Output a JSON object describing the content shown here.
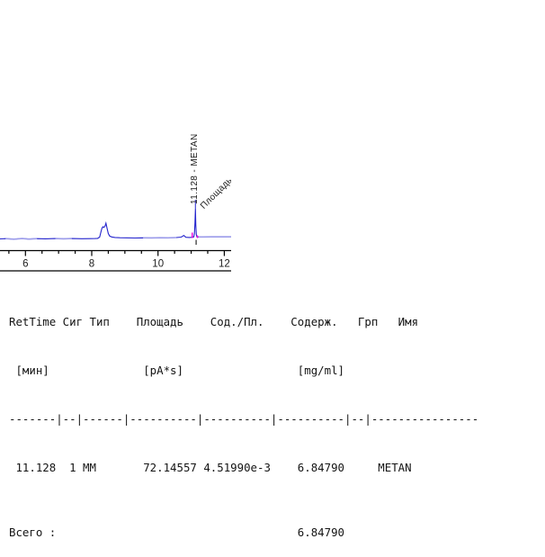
{
  "chart_data": {
    "type": "line",
    "title": "",
    "xlabel": "",
    "ylabel": "",
    "xlim": [
      5.23,
      12.27
    ],
    "x_major_ticks": [
      6,
      8,
      10,
      12
    ],
    "x_tick_labels": [
      "6",
      "8",
      "10",
      "12"
    ],
    "x_minor_tick_step": 0.5,
    "grid": false,
    "legend": false,
    "series": [
      {
        "name": "signal",
        "points": [
          [
            5.23,
            0
          ],
          [
            5.4,
            0.3
          ],
          [
            5.65,
            -0.3
          ],
          [
            5.9,
            0.4
          ],
          [
            6.1,
            -0.2
          ],
          [
            6.35,
            0.3
          ],
          [
            6.6,
            0.1
          ],
          [
            6.9,
            0.4
          ],
          [
            7.15,
            0.1
          ],
          [
            7.4,
            0.4
          ],
          [
            7.7,
            0.2
          ],
          [
            7.95,
            0.3
          ],
          [
            8.1,
            0.4
          ],
          [
            8.18,
            0.6
          ],
          [
            8.24,
            2
          ],
          [
            8.28,
            8
          ],
          [
            8.31,
            12
          ],
          [
            8.34,
            13.5
          ],
          [
            8.37,
            12.8
          ],
          [
            8.4,
            14
          ],
          [
            8.43,
            17.5
          ],
          [
            8.46,
            12
          ],
          [
            8.5,
            6
          ],
          [
            8.54,
            3.2
          ],
          [
            8.6,
            2.2
          ],
          [
            8.7,
            1.6
          ],
          [
            8.85,
            1.3
          ],
          [
            9.05,
            1.2
          ],
          [
            9.3,
            1
          ],
          [
            9.55,
            1.2
          ],
          [
            9.8,
            1.1
          ],
          [
            10.05,
            1.3
          ],
          [
            10.3,
            1.2
          ],
          [
            10.55,
            1.5
          ],
          [
            10.7,
            2
          ],
          [
            10.78,
            3.8
          ],
          [
            10.84,
            1.8
          ],
          [
            10.95,
            1.6
          ],
          [
            11.02,
            1.8
          ],
          [
            11.08,
            2.2
          ],
          [
            11.1,
            6
          ],
          [
            11.115,
            18
          ],
          [
            11.128,
            33.5
          ],
          [
            11.141,
            16
          ],
          [
            11.155,
            5
          ],
          [
            11.17,
            2.6
          ],
          [
            11.22,
            2.2
          ],
          [
            11.35,
            2.2
          ],
          [
            11.6,
            2.3
          ],
          [
            11.9,
            2.3
          ],
          [
            12.26,
            2.4
          ]
        ]
      }
    ],
    "baseline_overlay_segments": [
      [
        5.3,
        6.55
      ],
      [
        6.8,
        7.65
      ],
      [
        9.55,
        10.55
      ],
      [
        11.2,
        12.26
      ]
    ],
    "peak": {
      "rt": 11.128,
      "name": "METAN",
      "label": "11.128 - METAN",
      "area_label": "Площадь"
    },
    "colors": {
      "trace": "#2323cd",
      "baseline_overlay": "#9b9bea",
      "integration_marker": "#ee00dd",
      "axis": "#000000",
      "tick_text": "#1a1a1a"
    }
  },
  "report": {
    "lines": [
      "RetTime Сиг Тип    Площадь    Сод./Пл.    Содерж.   Грп   Имя",
      " [мин]              [pA*s]                 [mg/ml]",
      "-------|--|------|----------|----------|----------|--|----------------",
      " 11.128  1 ММ       72.14557 4.51990e-3    6.84790     METAN"
    ],
    "total_line": "Всего :                                    6.84790",
    "columns": [
      "RetTime [мин]",
      "Сиг",
      "Тип",
      "Площадь [pA*s]",
      "Сод./Пл.",
      "Содерж. [mg/ml]",
      "Грп",
      "Имя"
    ],
    "rows": [
      [
        "11.128",
        "1",
        "ММ",
        "72.14557",
        "4.51990e-3",
        "6.84790",
        "",
        "METAN"
      ]
    ],
    "total_label": "Всего :",
    "total_value": "6.84790"
  }
}
